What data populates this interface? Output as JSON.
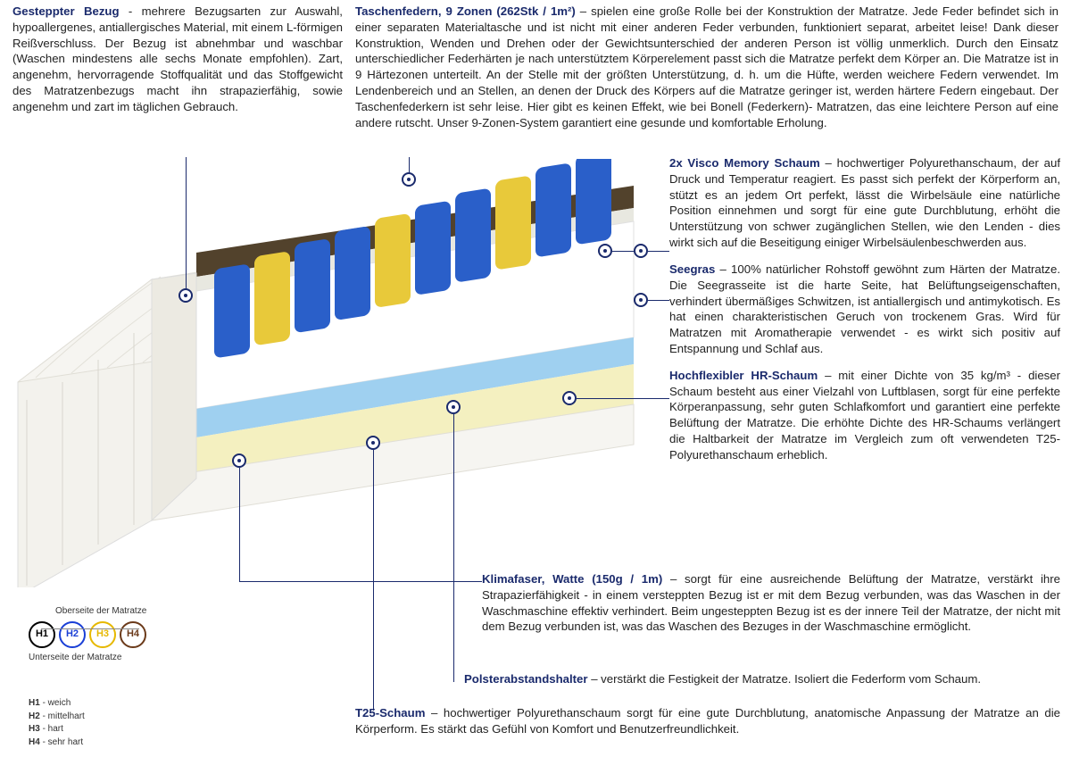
{
  "top": {
    "cover": {
      "title": "Gesteppter Bezug",
      "text": "- mehrere Bezugsarten zur Auswahl, hypoallergenes, antiallergisches Material, mit einem L-förmigen Reißverschluss. Der Bezug ist abnehmbar und waschbar (Waschen mindestens alle sechs Monate empfohlen). Zart, angenehm, hervorragende Stoffqualität und das Stoffgewicht des Matratzenbezugs macht ihn strapazierfähig, sowie angenehm und zart im täglichen Gebrauch."
    },
    "springs": {
      "title": "Taschenfedern, 9 Zonen (262Stk / 1m²)",
      "text": "– spielen eine große Rolle bei der Konstruktion der Matratze. Jede Feder befindet sich in einer separaten Materialtasche und ist nicht mit einer anderen Feder verbunden, funktioniert separat, arbeitet leise! Dank dieser Konstruktion, Wenden und Drehen oder der Gewichtsunterschied der anderen Person ist völlig unmerklich. Durch den Einsatz unterschiedlicher Federhärten je nach unterstütztem Körperelement passt sich die Matratze perfekt dem Körper an. Die Matratze ist in 9 Härtezonen unterteilt. An der Stelle mit der größten Unterstützung, d. h. um die Hüfte, werden weichere Federn verwendet. Im Lendenbereich und an Stellen, an denen der Druck des Körpers auf die Matratze geringer ist, werden härtere Federn eingebaut. Der Taschenfederkern ist sehr leise. Hier gibt es keinen Effekt, wie bei Bonell (Federkern)- Matratzen, das eine leichtere Person auf eine andere rutscht. Unser 9-Zonen-System garantiert eine gesunde und komfortable Erholung."
    }
  },
  "right": {
    "visco": {
      "title": "2x Visco Memory Schaum",
      "text": "– hochwertiger Polyurethanschaum, der auf Druck und Temperatur reagiert. Es passt sich perfekt der Körperform an, stützt es an jedem Ort perfekt, lässt die Wirbelsäule eine natürliche Position einnehmen und sorgt für eine gute Durchblutung, erhöht die Unterstützung von schwer zugänglichen Stellen, wie den Lenden - dies wirkt sich auf die Beseitigung einiger Wirbelsäulenbeschwerden aus."
    },
    "seegras": {
      "title": "Seegras",
      "text": "– 100% natürlicher Rohstoff gewöhnt zum Härten der Matratze. Die Seegrasseite ist die harte Seite, hat Belüftungseigenschaften, verhindert übermäßiges Schwitzen, ist antiallergisch und antimykotisch. Es hat einen charakteristischen Geruch von trockenem Gras. Wird für Matratzen mit Aromatherapie verwendet - es wirkt sich positiv auf Entspannung und Schlaf aus."
    },
    "hr": {
      "title": "Hochflexibler HR-Schaum",
      "text": "– mit einer Dichte von 35 kg/m³ - dieser Schaum besteht aus einer Vielzahl von Luftblasen, sorgt für eine perfekte Körperanpassung, sehr guten Schlafkomfort und garantiert eine perfekte Belüftung der Matratze. Die erhöhte Dichte des HR-Schaums verlängert die Haltbarkeit der Matratze im Vergleich zum oft verwendeten T25-Polyurethanschaum erheblich."
    }
  },
  "lower": {
    "klimafaser": {
      "title": "Klimafaser, Watte (150g / 1m)",
      "text": "– sorgt für eine ausreichende Belüftung der Matratze, verstärkt ihre Strapazierfähigkeit - in einem versteppten Bezug ist er mit dem Bezug verbunden, was das Waschen in der Waschmaschine effektiv verhindert. Beim ungesteppten Bezug ist es der innere Teil der Matratze, der nicht mit dem Bezug verbunden ist, was das Waschen des Bezuges in der Waschmaschine ermöglicht."
    },
    "polster": {
      "title": "Polsterabstandshalter",
      "text": "– verstärkt die Festigkeit der Matratze. Isoliert die Federform vom Schaum."
    },
    "t25": {
      "title": "T25-Schaum",
      "text": "– hochwertiger Polyurethanschaum sorgt für eine gute Durchblutung, anatomische Anpassung der Matratze an die Körperform. Es stärkt das Gefühl von Komfort und Benutzerfreundlichkeit."
    }
  },
  "hardness": {
    "top_label": "Oberseite der Matratze",
    "bottom_label": "Unterseite der Matratze",
    "circles": [
      {
        "label": "H1",
        "color": "#000000"
      },
      {
        "label": "H2",
        "color": "#1a3fd6"
      },
      {
        "label": "H3",
        "color": "#e6b800"
      },
      {
        "label": "H4",
        "color": "#6b3a1a"
      }
    ],
    "legend": [
      {
        "code": "H1",
        "desc": "weich"
      },
      {
        "code": "H2",
        "desc": "mittelhart"
      },
      {
        "code": "H3",
        "desc": "hart"
      },
      {
        "code": "H4",
        "desc": "sehr hart"
      }
    ]
  },
  "mattress_layers": {
    "cover_color": "#f3f2ed",
    "seagrass_color": "#52422c",
    "visco_color": "#e8e8e0",
    "springs_blue": "#2a5fc9",
    "springs_yellow": "#e8c93a",
    "hr_foam": "#9fd0f0",
    "t25_foam": "#f4f0c0",
    "base_white": "#f6f5f1"
  }
}
